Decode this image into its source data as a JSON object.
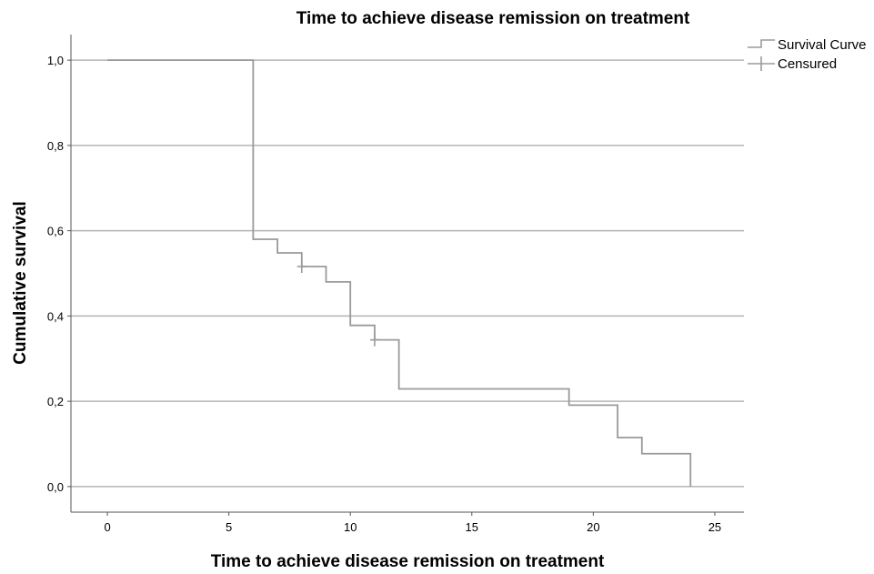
{
  "chart_data": {
    "type": "line",
    "step": true,
    "title": "Time to achieve disease remission on treatment",
    "xlabel": "Time to achieve disease remission on treatment",
    "ylabel": "Cumulative survival",
    "xlim": [
      -1.5,
      26.2
    ],
    "ylim": [
      -0.06,
      1.06
    ],
    "x_ticks": [
      0,
      5,
      10,
      15,
      20,
      25
    ],
    "x_tick_labels": [
      "0",
      "5",
      "10",
      "15",
      "20",
      "25"
    ],
    "y_ticks": [
      0.0,
      0.2,
      0.4,
      0.6,
      0.8,
      1.0
    ],
    "y_tick_labels": [
      "0,0",
      "0,2",
      "0,4",
      "0,6",
      "0,8",
      "1,0"
    ],
    "grid": "horizontal",
    "legend_position": "top-right",
    "legend": [
      {
        "key": "curve",
        "label": "Survival Curve"
      },
      {
        "key": "censored",
        "label": "Censured"
      }
    ],
    "series": [
      {
        "name": "Survival Curve",
        "color": "#9a9a9a",
        "steps": [
          {
            "x": 0,
            "y": 1.0
          },
          {
            "x": 6,
            "y": 0.58
          },
          {
            "x": 7,
            "y": 0.548
          },
          {
            "x": 8,
            "y": 0.516
          },
          {
            "x": 9,
            "y": 0.48
          },
          {
            "x": 10,
            "y": 0.378
          },
          {
            "x": 11,
            "y": 0.344
          },
          {
            "x": 12,
            "y": 0.229
          },
          {
            "x": 19,
            "y": 0.191
          },
          {
            "x": 21,
            "y": 0.115
          },
          {
            "x": 22,
            "y": 0.077
          },
          {
            "x": 24,
            "y": 0.0
          }
        ],
        "censored": [
          {
            "x": 8,
            "y": 0.516
          },
          {
            "x": 11,
            "y": 0.344
          }
        ]
      }
    ],
    "colors": {
      "curve": "#9a9a9a",
      "grid": "#b4b4b4",
      "axis": "#555555"
    }
  }
}
